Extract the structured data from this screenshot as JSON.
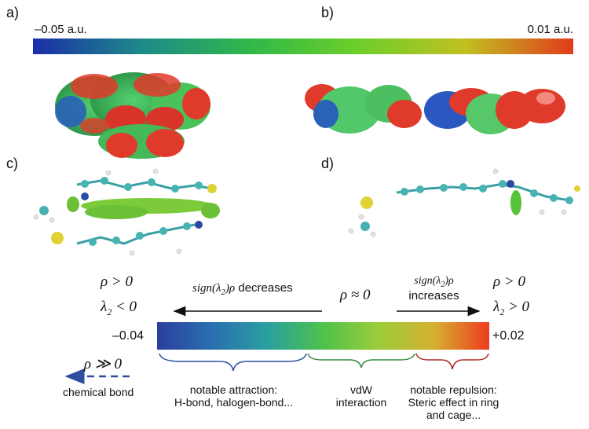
{
  "panels": {
    "a": "a)",
    "b": "b)",
    "c": "c)",
    "d": "d)"
  },
  "esp_scale": {
    "min_label": "–0.05 a.u.",
    "max_label": "0.01 a.u.",
    "gradient": [
      "#1a2ea8",
      "#1e8a8a",
      "#2fb84a",
      "#6ccf2a",
      "#c0c020",
      "#e23b1c"
    ]
  },
  "nci": {
    "left_rho": "ρ > 0",
    "left_lambda": "λ",
    "left_lambda_sub": "2",
    "left_lambda_rel": " < 0",
    "decreases_fn": "sign(λ",
    "decreases_fn_sub": "2",
    "decreases_fn_tail": ")ρ",
    "decreases_word": "decreases",
    "center_rho": "ρ ≈ 0",
    "increases_fn": "sign(λ",
    "increases_fn_sub": "2",
    "increases_fn_tail": ")ρ",
    "increases_word": "increases",
    "right_rho": "ρ > 0",
    "right_lambda": "λ",
    "right_lambda_sub": "2",
    "right_lambda_rel": " > 0",
    "bar_min": "–0.04",
    "bar_max": "+0.02",
    "bar_gradient": [
      "#2b3f9e",
      "#2a6fb0",
      "#2aa0a0",
      "#4ec24a",
      "#9ccc3a",
      "#d6b030",
      "#ef3b1f"
    ],
    "strong_rho": "ρ ≫ 0",
    "chemical_bond": "chemical bond",
    "attraction_line1": "notable attraction:",
    "attraction_line2": "H-bond, halogen-bond...",
    "vdw_line1": "vdW",
    "vdw_line2": "interaction",
    "repulsion_line1": "notable repulsion:",
    "repulsion_line2": "Steric effect in ring",
    "repulsion_line3": "and cage...",
    "brace_colors": {
      "attraction": "#2e4fa0",
      "vdw": "#2f8a3a",
      "repulsion": "#a82a1e"
    },
    "arrow_color_bond": "#2e4fa0"
  }
}
